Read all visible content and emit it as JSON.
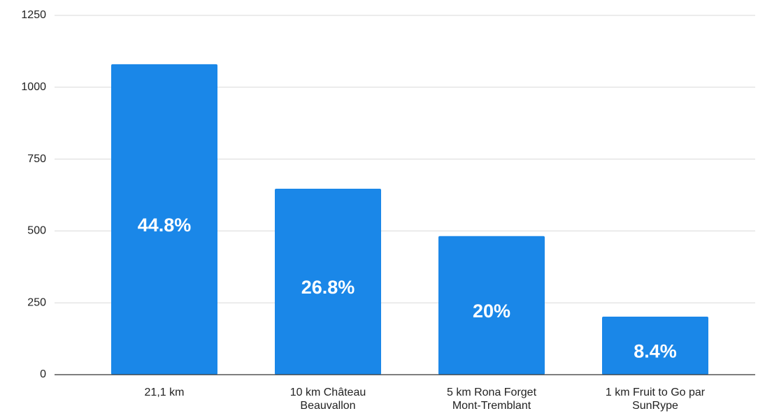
{
  "chart_data": {
    "type": "bar",
    "categories": [
      "21,1 km",
      "10 km Château\nBeauvallon",
      "5 km Rona Forget\nMont-Tremblant",
      "1 km Fruit to Go par\nSunRype"
    ],
    "values": [
      1080,
      647,
      482,
      202
    ],
    "share_labels": [
      "44.8%",
      "26.8%",
      "20%",
      "8.4%"
    ],
    "color": "#1a87e8",
    "ylim": [
      0,
      1250
    ],
    "yticks": [
      0,
      250,
      500,
      750,
      1000,
      1250
    ],
    "grid": true
  }
}
